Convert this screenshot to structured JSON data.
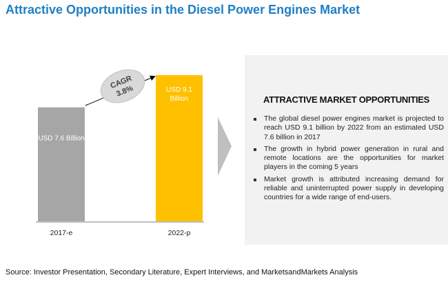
{
  "title": "Attractive Opportunities in the Diesel Power Engines Market",
  "chart_data": {
    "type": "bar",
    "categories": [
      "2017-e",
      "2022-p"
    ],
    "values": [
      7.6,
      9.1
    ],
    "data_labels": [
      "USD 7.6 Billion",
      "USD 9.1 Billion"
    ],
    "unit": "USD Billion",
    "colors": [
      "#a6a6a6",
      "#ffc000"
    ],
    "annotation": {
      "line1": "CAGR",
      "line2": "3.8%"
    },
    "ylim": [
      0,
      9.1
    ],
    "grid": false
  },
  "panel": {
    "heading": "ATTRACTIVE MARKET OPPORTUNITIES",
    "bullets": [
      "The global diesel power engines market is projected to reach USD 9.1 billion by 2022 from an estimated USD 7.6 billion in 2017",
      "The growth in hybrid power generation in rural and remote locations are the opportunities for market players in the coming 5 years",
      "Market growth is attributed increasing demand for reliable and uninterrupted power supply in developing countries for a wide range of end-users."
    ]
  },
  "source": "Source: Investor Presentation, Secondary Literature, Expert Interviews, and MarketsandMarkets Analysis"
}
